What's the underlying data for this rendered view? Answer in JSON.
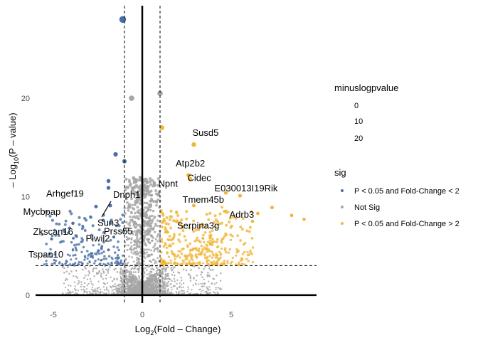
{
  "chart_data": {
    "type": "scatter",
    "title": "",
    "xlabel_main": "Log",
    "xlabel_sub": "2",
    "xlabel_rest": "(Fold – Change)",
    "ylabel_main": "– Log",
    "ylabel_sub": "10",
    "ylabel_rest": "(P – value)",
    "xlim": [
      -6,
      9.8
    ],
    "ylim": [
      -0.8,
      29.4
    ],
    "xticks": [
      -5,
      0,
      5
    ],
    "yticks": [
      0,
      10,
      20
    ],
    "grid": false,
    "fc_threshold": 1,
    "p_threshold_line": 3,
    "legend_position": "right",
    "legend_size": {
      "title": "minuslogpvalue",
      "values": [
        "0",
        "10",
        "20"
      ]
    },
    "legend_color": {
      "title": "sig",
      "entries": [
        {
          "label": "P < 0.05 and Fold-Change < 2",
          "color": "#4a6fa5"
        },
        {
          "label": "Not Sig",
          "color": "#a6a6a6"
        },
        {
          "label": "P < 0.05 and Fold-Change > 2",
          "color": "#f0b63a"
        }
      ]
    },
    "labeled_genes": [
      {
        "label": "Susd5",
        "x": 2.9,
        "y": 15.3,
        "group": "up"
      },
      {
        "label": "Atp2b2",
        "x": 2.6,
        "y": 12.2,
        "group": "up"
      },
      {
        "label": "Cidec",
        "x": 2.7,
        "y": 11.8,
        "group": "up"
      },
      {
        "label": "E030013I19Rik",
        "x": 4.7,
        "y": 10.4,
        "group": "up"
      },
      {
        "label": "Npnt",
        "x": 0.9,
        "y": 10.2,
        "group": "notsig"
      },
      {
        "label": "Tmem45b",
        "x": 2.9,
        "y": 9.1,
        "group": "up"
      },
      {
        "label": "Adrb3",
        "x": 6.5,
        "y": 8.3,
        "group": "up"
      },
      {
        "label": "Serpina3g",
        "x": 3.4,
        "y": 7.2,
        "group": "up"
      },
      {
        "label": "Arhgef19",
        "x": -2.6,
        "y": 9.0,
        "group": "down"
      },
      {
        "label": "Dnph1",
        "x": -1.8,
        "y": 9.1,
        "group": "down"
      },
      {
        "label": "Mycbpap",
        "x": -3.9,
        "y": 7.3,
        "group": "down"
      },
      {
        "label": "Sun3",
        "x": -2.2,
        "y": 7.6,
        "group": "down"
      },
      {
        "label": "Zkscan16",
        "x": -5.1,
        "y": 5.7,
        "group": "down"
      },
      {
        "label": "Prss55",
        "x": -1.6,
        "y": 5.9,
        "group": "down"
      },
      {
        "label": "Tspan10",
        "x": -5.2,
        "y": 4.2,
        "group": "down"
      },
      {
        "label": "Plwil2",
        "x": -1.9,
        "y": 4.6,
        "group": "down"
      }
    ],
    "highlight_points": [
      {
        "x": -1.1,
        "y": 28.0,
        "group": "down"
      },
      {
        "x": 1.0,
        "y": 20.5,
        "group": "notsig"
      },
      {
        "x": -0.6,
        "y": 20.0,
        "group": "notsig"
      },
      {
        "x": 1.1,
        "y": 17.0,
        "group": "up"
      },
      {
        "x": -1.5,
        "y": 14.3,
        "group": "down"
      },
      {
        "x": -1.0,
        "y": 13.6,
        "group": "down"
      },
      {
        "x": -1.9,
        "y": 11.6,
        "group": "down"
      },
      {
        "x": -1.9,
        "y": 10.9,
        "group": "down"
      },
      {
        "x": 5.5,
        "y": 10.1,
        "group": "up"
      },
      {
        "x": 7.3,
        "y": 8.9,
        "group": "up"
      },
      {
        "x": 9.1,
        "y": 7.7,
        "group": "up"
      },
      {
        "x": 6.2,
        "y": 7.5,
        "group": "up"
      },
      {
        "x": 8.4,
        "y": 8.1,
        "group": "up"
      }
    ]
  }
}
